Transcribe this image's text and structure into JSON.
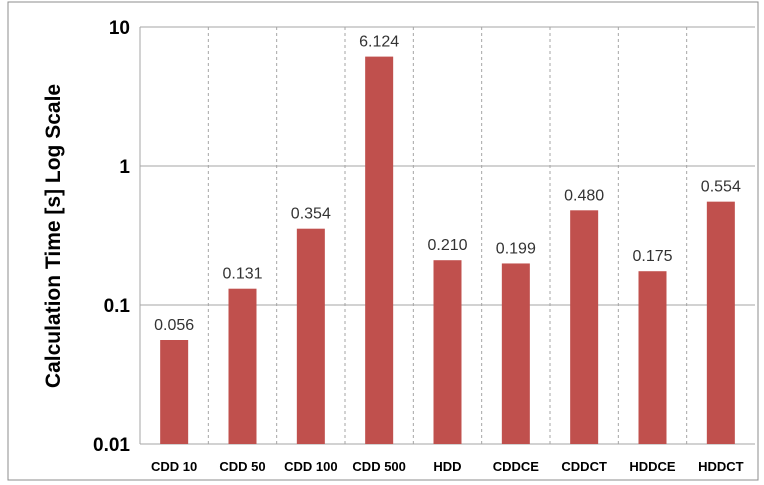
{
  "chart_data": {
    "type": "bar",
    "title": "",
    "xlabel": "",
    "ylabel": "Calculation Time [s] Log Scale",
    "yscale": "log",
    "ylim": [
      0.01,
      10
    ],
    "yticks": [
      "0.01",
      "0.1",
      "1",
      "10"
    ],
    "ytick_values": [
      0.01,
      0.1,
      1,
      10
    ],
    "categories": [
      "CDD 10",
      "CDD 50",
      "CDD 100",
      "CDD 500",
      "HDD",
      "CDDCE",
      "CDDCT",
      "HDDCE",
      "HDDCT"
    ],
    "values": [
      0.056,
      0.131,
      0.354,
      6.124,
      0.21,
      0.199,
      0.48,
      0.175,
      0.554
    ],
    "data_labels": [
      "0.056",
      "0.131",
      "0.354",
      "6.124",
      "0.210",
      "0.199",
      "0.480",
      "0.175",
      "0.554"
    ],
    "bar_color": "#c0504d",
    "grid": true,
    "legend": "none"
  }
}
